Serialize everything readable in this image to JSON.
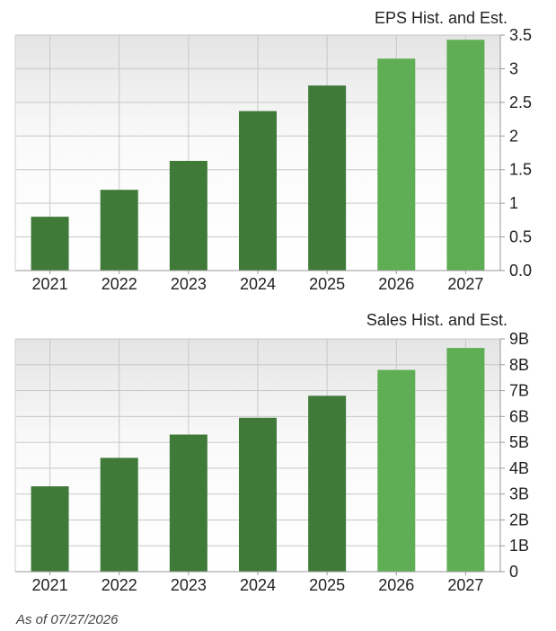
{
  "chart_data": [
    {
      "type": "bar",
      "title": "EPS Hist. and Est.",
      "categories": [
        "2021",
        "2022",
        "2023",
        "2024",
        "2025",
        "2026",
        "2027"
      ],
      "values": [
        0.8,
        1.2,
        1.63,
        2.37,
        2.75,
        3.15,
        3.43
      ],
      "estimate_from_index": 5,
      "ylim": [
        0,
        3.5
      ],
      "y_ticks": [
        0.0,
        0.5,
        1,
        1.5,
        2,
        2.5,
        3,
        3.5
      ],
      "y_tick_labels": [
        "0.0",
        "0.5",
        "1",
        "1.5",
        "2",
        "2.5",
        "3",
        "3.5"
      ],
      "grid": true,
      "colors": {
        "historical": "#3f7a39",
        "estimate": "#5fae55",
        "grid": "#c8c8c8",
        "axis": "#999999"
      }
    },
    {
      "type": "bar",
      "title": "Sales Hist. and Est.",
      "categories": [
        "2021",
        "2022",
        "2023",
        "2024",
        "2025",
        "2026",
        "2027"
      ],
      "values": [
        3.3,
        4.4,
        5.3,
        5.95,
        6.8,
        7.8,
        8.65
      ],
      "estimate_from_index": 5,
      "ylim": [
        0,
        9
      ],
      "y_ticks": [
        0,
        1,
        2,
        3,
        4,
        5,
        6,
        7,
        8,
        9
      ],
      "y_tick_labels": [
        "0",
        "1B",
        "2B",
        "3B",
        "4B",
        "5B",
        "6B",
        "7B",
        "8B",
        "9B"
      ],
      "grid": true,
      "colors": {
        "historical": "#3f7a39",
        "estimate": "#5fae55",
        "grid": "#c8c8c8",
        "axis": "#999999"
      }
    }
  ],
  "footer": {
    "as_of": "As of 07/27/2026"
  }
}
